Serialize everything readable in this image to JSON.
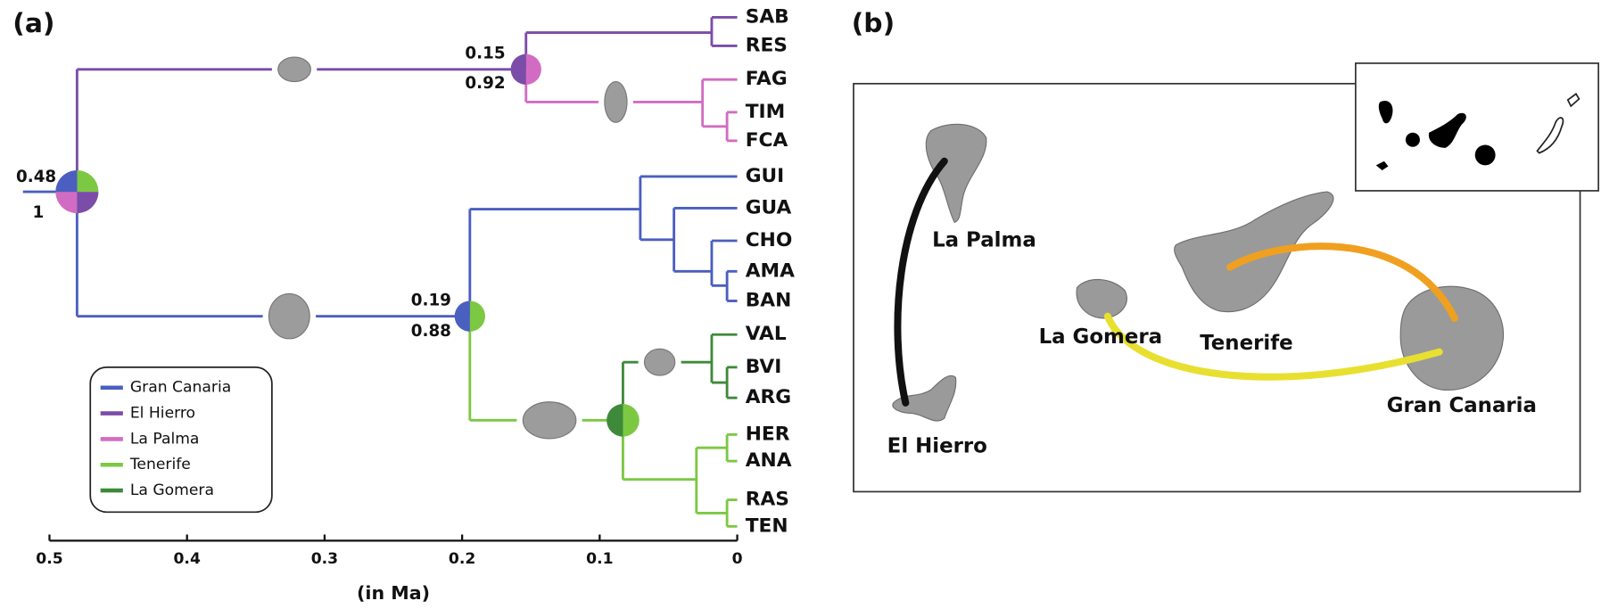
{
  "panels": {
    "a": "(a)",
    "b": "(b)"
  },
  "tree": {
    "nodes": [
      {
        "support_top": "0.48",
        "support_bottom": "1"
      },
      {
        "support_top": "0.15",
        "support_bottom": "0.92"
      },
      {
        "support_top": "0.19",
        "support_bottom": "0.88"
      }
    ],
    "tips": [
      "SAB",
      "RES",
      "FAG",
      "TIM",
      "FCA",
      "GUI",
      "GUA",
      "CHO",
      "AMA",
      "BAN",
      "VAL",
      "BVI",
      "ARG",
      "HER",
      "ANA",
      "RAS",
      "TEN"
    ],
    "axis": {
      "lim": [
        0.5,
        0
      ],
      "ticks": [
        0.5,
        0.4,
        0.3,
        0.2,
        0.1,
        0
      ],
      "label": "(in Ma)"
    }
  },
  "legend": [
    {
      "name": "Gran Canaria",
      "color": "#4a5fbf"
    },
    {
      "name": "El Hierro",
      "color": "#7b4ca8"
    },
    {
      "name": "La Palma",
      "color": "#d26cc2"
    },
    {
      "name": "Tenerife",
      "color": "#7cc843"
    },
    {
      "name": "La Gomera",
      "color": "#3f8a3a"
    }
  ],
  "map": {
    "labels": [
      "La Palma",
      "El Hierro",
      "La Gomera",
      "Tenerife",
      "Gran Canaria"
    ]
  }
}
